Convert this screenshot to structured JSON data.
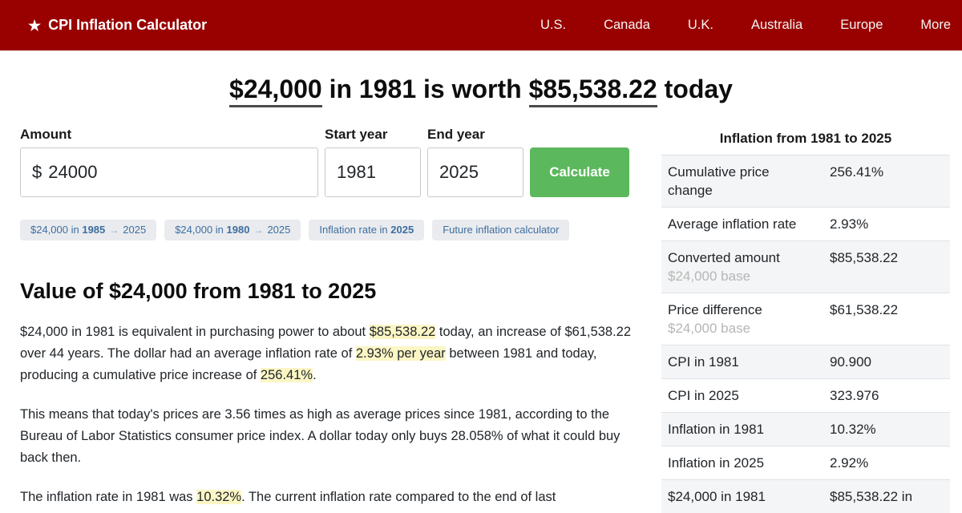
{
  "colors": {
    "navbar_red": "#990000",
    "button_green": "#5cb85c",
    "highlight_yellow": "#fcf6c5",
    "pill_link_blue": "#3e6e9e"
  },
  "navbar": {
    "brand_icon": "★",
    "brand_text": "CPI Inflation Calculator",
    "links": [
      "U.S.",
      "Canada",
      "U.K.",
      "Australia",
      "Europe",
      "More"
    ]
  },
  "hero": {
    "amount_from": "$24,000",
    "middle": " in 1981 is worth ",
    "amount_to": "$85,538.22",
    "suffix": " today"
  },
  "form": {
    "amount_label": "Amount",
    "currency_symbol": "$",
    "amount_value": "24000",
    "start_year_label": "Start year",
    "start_year_value": "1981",
    "end_year_label": "End year",
    "end_year_value": "2025",
    "calculate_label": "Calculate"
  },
  "quick_links": [
    {
      "segments": [
        {
          "text": "$24,000 in "
        },
        {
          "text": "1985",
          "bold": true
        },
        {
          "text": "→",
          "arrow": true
        },
        {
          "text": "2025"
        }
      ]
    },
    {
      "segments": [
        {
          "text": "$24,000 in "
        },
        {
          "text": "1980",
          "bold": true
        },
        {
          "text": "→",
          "arrow": true
        },
        {
          "text": "2025"
        }
      ]
    },
    {
      "segments": [
        {
          "text": "Inflation rate in "
        },
        {
          "text": "2025",
          "bold": true
        }
      ]
    },
    {
      "segments": [
        {
          "text": "Future inflation calculator"
        }
      ]
    }
  ],
  "article": {
    "heading": "Value of $24,000 from 1981 to 2025",
    "paragraphs": [
      {
        "segments": [
          {
            "text": "$24,000 in 1981 is equivalent in purchasing power to about "
          },
          {
            "text": "$85,538.22",
            "highlight": true
          },
          {
            "text": " today, an increase of $61,538.22 over 44 years. The dollar had an average inflation rate of "
          },
          {
            "text": "2.93% per year",
            "highlight": true
          },
          {
            "text": " between 1981 and today, producing a cumulative price increase of "
          },
          {
            "text": "256.41%",
            "highlight": true
          },
          {
            "text": "."
          }
        ]
      },
      {
        "segments": [
          {
            "text": "This means that today's prices are 3.56 times as high as average prices since 1981, according to the Bureau of Labor Statistics consumer price index. A dollar today only buys 28.058% of what it could buy back then."
          }
        ]
      },
      {
        "segments": [
          {
            "text": "The inflation rate in 1981 was "
          },
          {
            "text": "10.32%",
            "highlight": true
          },
          {
            "text": ". The current inflation rate compared to the end of last"
          }
        ]
      }
    ]
  },
  "sidebar": {
    "title": "Inflation from 1981 to 2025",
    "rows": [
      {
        "label": "Cumulative price change",
        "value": "256.41%"
      },
      {
        "label": "Average inflation rate",
        "value": "2.93%"
      },
      {
        "label": "Converted amount",
        "sub": "$24,000 base",
        "value": "$85,538.22"
      },
      {
        "label": "Price difference",
        "sub": "$24,000 base",
        "value": "$61,538.22"
      },
      {
        "label": "CPI in 1981",
        "value": "90.900"
      },
      {
        "label": "CPI in 2025",
        "value": "323.976"
      },
      {
        "label": "Inflation in 1981",
        "value": "10.32%"
      },
      {
        "label": "Inflation in 2025",
        "value": "2.92%"
      },
      {
        "label": "$24,000 in 1981",
        "value": "$85,538.22 in"
      }
    ]
  }
}
